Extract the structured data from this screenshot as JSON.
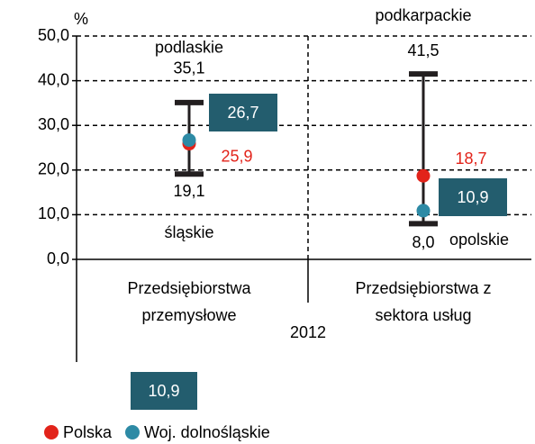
{
  "chart_data": {
    "type": "range",
    "y_label": "%",
    "x_label": "2012",
    "ylim": [
      0,
      50
    ],
    "yticks": [
      {
        "value": 0,
        "label": "0,0"
      },
      {
        "value": 10,
        "label": "10,0"
      },
      {
        "value": 20,
        "label": "20,0"
      },
      {
        "value": 30,
        "label": "30,0"
      },
      {
        "value": 40,
        "label": "40,0"
      },
      {
        "value": 50,
        "label": "50,0"
      }
    ],
    "grid": true,
    "categories": [
      "Przedsiębiorstwa przemysłowe",
      "Przedsiębiorstwa z sektora usług"
    ],
    "series": [
      {
        "name": "Polska",
        "color": "#e2231a",
        "values": [
          25.9,
          18.7
        ],
        "value_labels": [
          "25,9",
          "18,7"
        ]
      },
      {
        "name": "Woj. dolnośląskie",
        "color": "#2d8aa5",
        "values": [
          26.7,
          10.9
        ],
        "value_labels": [
          "26,7",
          "10,9"
        ],
        "label_box_color": "#235d6e"
      }
    ],
    "range": {
      "max": [
        35.1,
        41.5
      ],
      "max_labels": [
        "35,1",
        "41,5"
      ],
      "max_regions": [
        "podlaskie",
        "podkarpackie"
      ],
      "min": [
        19.1,
        8.0
      ],
      "min_labels": [
        "19,1",
        "8,0"
      ],
      "min_regions": [
        "śląskie",
        "opolskie"
      ],
      "color": "#231f20"
    },
    "annotations": [
      "10,9"
    ]
  }
}
